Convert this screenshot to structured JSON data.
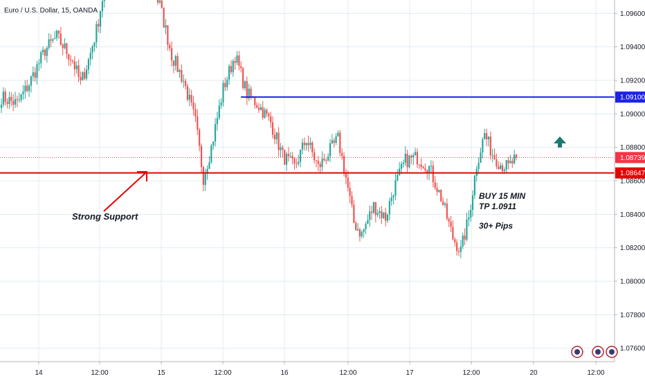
{
  "chart_data": {
    "type": "candlestick",
    "title": "Euro / U.S. Dollar, 15, OANDA",
    "symbol": "EURUSD",
    "timeframe": "15",
    "source": "OANDA",
    "y_axis": {
      "ylim": [
        1.0752,
        1.0968
      ],
      "ticks": [
        "1.09600",
        "1.09400",
        "1.09200",
        "1.09000",
        "1.08800",
        "1.08600",
        "1.08400",
        "1.08200",
        "1.08000",
        "1.07800",
        "1.07600"
      ],
      "grid": true,
      "position": "right"
    },
    "x_axis": {
      "ticks": [
        "14",
        "12:00",
        "15",
        "12:00",
        "16",
        "12:00",
        "17",
        "12:00",
        "20",
        "12:00"
      ],
      "grid": true
    },
    "price_badges": [
      {
        "label": "1.09100",
        "value": 1.091,
        "color": "#1e22e6"
      },
      {
        "label": "1.08739",
        "value": 1.08739,
        "color": "#f23645"
      },
      {
        "label": "1.08647",
        "value": 1.08647,
        "color": "#e80000"
      }
    ],
    "horizontal_lines": [
      {
        "name": "resistance-line",
        "value": 1.091,
        "color": "#1e22e6",
        "from_x_fraction": 0.392
      },
      {
        "name": "support-line",
        "value": 1.08647,
        "color": "#e80000",
        "from_x_fraction": 0.0
      },
      {
        "name": "last-price-line",
        "value": 1.08739,
        "color": "#f23645",
        "dotted": true
      }
    ],
    "anchors": [
      {
        "t": 0,
        "p": 1.091
      },
      {
        "t": 8,
        "p": 1.0906
      },
      {
        "t": 14,
        "p": 1.0918
      },
      {
        "t": 22,
        "p": 1.0938
      },
      {
        "t": 28,
        "p": 1.0946
      },
      {
        "t": 36,
        "p": 1.0932
      },
      {
        "t": 40,
        "p": 1.0918
      },
      {
        "t": 44,
        "p": 1.0932
      },
      {
        "t": 48,
        "p": 1.095
      },
      {
        "t": 52,
        "p": 1.0975
      },
      {
        "t": 60,
        "p": 1.098
      },
      {
        "t": 72,
        "p": 1.0985
      },
      {
        "t": 80,
        "p": 1.0965
      },
      {
        "t": 86,
        "p": 1.0935
      },
      {
        "t": 92,
        "p": 1.092
      },
      {
        "t": 98,
        "p": 1.0895
      },
      {
        "t": 102,
        "p": 1.0862
      },
      {
        "t": 106,
        "p": 1.088
      },
      {
        "t": 112,
        "p": 1.0915
      },
      {
        "t": 118,
        "p": 1.0935
      },
      {
        "t": 124,
        "p": 1.0912
      },
      {
        "t": 130,
        "p": 1.0905
      },
      {
        "t": 136,
        "p": 1.0895
      },
      {
        "t": 142,
        "p": 1.0875
      },
      {
        "t": 148,
        "p": 1.0868
      },
      {
        "t": 154,
        "p": 1.0885
      },
      {
        "t": 160,
        "p": 1.0868
      },
      {
        "t": 166,
        "p": 1.0878
      },
      {
        "t": 170,
        "p": 1.0885
      },
      {
        "t": 174,
        "p": 1.0862
      },
      {
        "t": 178,
        "p": 1.0835
      },
      {
        "t": 182,
        "p": 1.0828
      },
      {
        "t": 188,
        "p": 1.0845
      },
      {
        "t": 194,
        "p": 1.0838
      },
      {
        "t": 198,
        "p": 1.0855
      },
      {
        "t": 204,
        "p": 1.0872
      },
      {
        "t": 210,
        "p": 1.0874
      },
      {
        "t": 216,
        "p": 1.0868
      },
      {
        "t": 222,
        "p": 1.085
      },
      {
        "t": 228,
        "p": 1.0826
      },
      {
        "t": 232,
        "p": 1.0818
      },
      {
        "t": 236,
        "p": 1.0838
      },
      {
        "t": 240,
        "p": 1.087
      },
      {
        "t": 244,
        "p": 1.0888
      },
      {
        "t": 248,
        "p": 1.0876
      },
      {
        "t": 252,
        "p": 1.087
      },
      {
        "t": 256,
        "p": 1.0868
      },
      {
        "t": 260,
        "p": 1.08739
      }
    ],
    "annotations": [
      {
        "name": "strong-support-label",
        "text": "Strong Support"
      },
      {
        "name": "buy-label",
        "text": "BUY 15 MIN"
      },
      {
        "name": "tp-label",
        "text": "TP 1.0911"
      },
      {
        "name": "pips-label",
        "text": "30+ Pips"
      }
    ],
    "colors": {
      "up": "#26a69a",
      "down": "#ef5350",
      "grid": "#e1ecf2",
      "axis_line": "#b2b5be",
      "arrow_red": "#e80000",
      "arrow_green": "#1b7a73"
    }
  }
}
